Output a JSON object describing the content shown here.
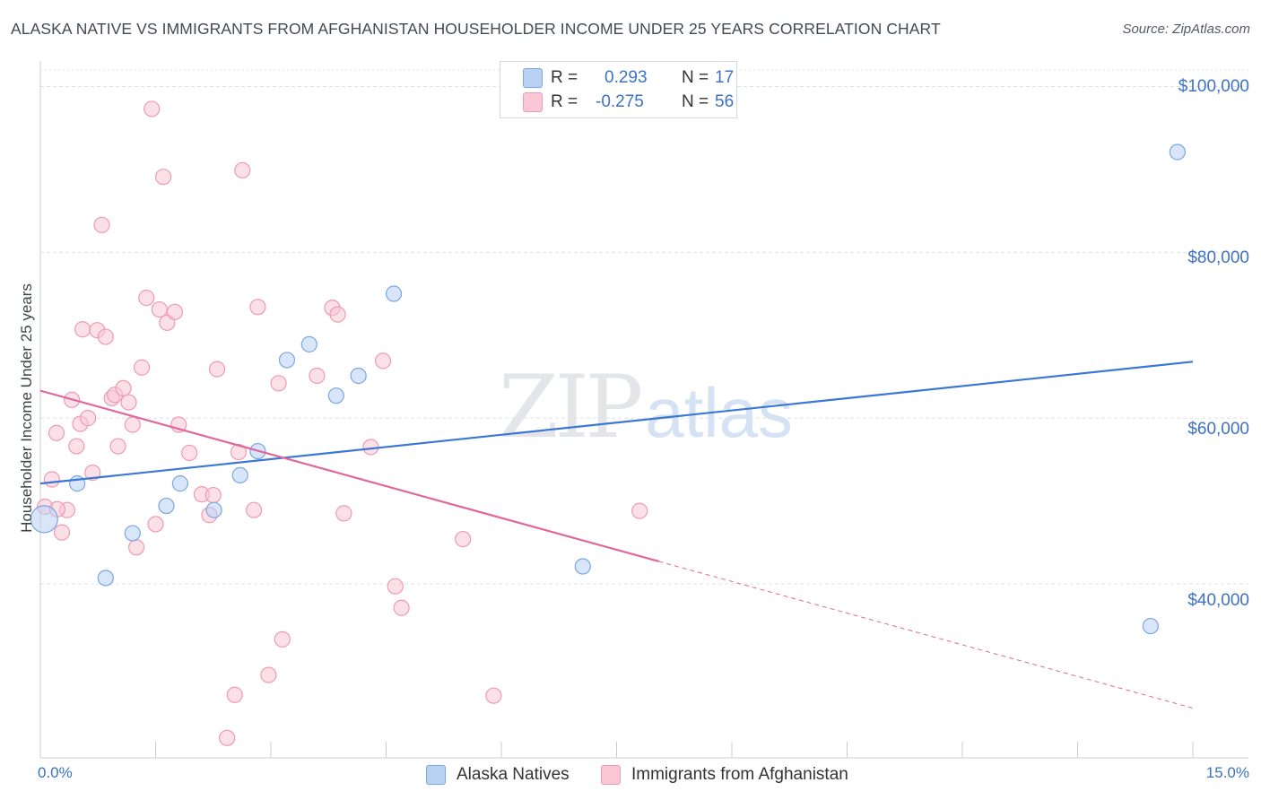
{
  "header": {
    "title": "ALASKA NATIVE VS IMMIGRANTS FROM AFGHANISTAN HOUSEHOLDER INCOME UNDER 25 YEARS CORRELATION CHART",
    "source": "Source: ZipAtlas.com"
  },
  "watermark": {
    "zip": "ZIP",
    "atlas": "atlas"
  },
  "legend": {
    "rows": [
      {
        "r_label": "R =",
        "r_value": "0.293",
        "n_label": "N =",
        "n_value": "17"
      },
      {
        "r_label": "R =",
        "r_value": "-0.275",
        "n_label": "N =",
        "n_value": "56"
      }
    ]
  },
  "colors": {
    "alaska_fill": "#b9d2f4",
    "alaska_stroke": "#7aa6e3",
    "alaska_line": "#3a78d4",
    "afghan_fill": "#f9c6d5",
    "afghan_stroke": "#ee9ab3",
    "afghan_line": "#e0679a",
    "tick_text": "#3d72c4",
    "grid": "#dde1e6"
  },
  "chart_data": {
    "type": "scatter",
    "title": "ALASKA NATIVE VS IMMIGRANTS FROM AFGHANISTAN HOUSEHOLDER INCOME UNDER 25 YEARS CORRELATION CHART",
    "xlabel": "",
    "ylabel": "Householder Income Under 25 years",
    "xlim": [
      0,
      15
    ],
    "ylim": [
      19000,
      102000
    ],
    "x_tick_labels": [
      "0.0%",
      "15.0%"
    ],
    "y_ticks": [
      40000,
      60000,
      80000,
      100000
    ],
    "y_tick_labels": [
      "$40,000",
      "$60,000",
      "$80,000",
      "$100,000"
    ],
    "grid": true,
    "legend_position": "top-center",
    "series": [
      {
        "name": "Alaska Natives",
        "r": 0.293,
        "n": 17,
        "points": [
          {
            "x": 0.05,
            "y": 47800
          },
          {
            "x": 0.48,
            "y": 52100
          },
          {
            "x": 0.85,
            "y": 40700
          },
          {
            "x": 1.2,
            "y": 46100
          },
          {
            "x": 1.64,
            "y": 49400
          },
          {
            "x": 1.82,
            "y": 52100
          },
          {
            "x": 2.26,
            "y": 48900
          },
          {
            "x": 2.6,
            "y": 53100
          },
          {
            "x": 2.83,
            "y": 56000
          },
          {
            "x": 3.21,
            "y": 67000
          },
          {
            "x": 3.5,
            "y": 68900
          },
          {
            "x": 3.85,
            "y": 62700
          },
          {
            "x": 4.14,
            "y": 65100
          },
          {
            "x": 4.6,
            "y": 75000
          },
          {
            "x": 7.06,
            "y": 42100
          },
          {
            "x": 14.45,
            "y": 34900
          },
          {
            "x": 14.8,
            "y": 92100
          }
        ],
        "trend": {
          "x0": 0.0,
          "y0": 52100,
          "x1": 15.0,
          "y1": 66800
        }
      },
      {
        "name": "Immigrants from Afghanistan",
        "r": -0.275,
        "n": 56,
        "points": [
          {
            "x": 0.06,
            "y": 49300
          },
          {
            "x": 0.15,
            "y": 52600
          },
          {
            "x": 0.21,
            "y": 58200
          },
          {
            "x": 0.28,
            "y": 46200
          },
          {
            "x": 0.35,
            "y": 48900
          },
          {
            "x": 0.41,
            "y": 62200
          },
          {
            "x": 0.47,
            "y": 56600
          },
          {
            "x": 0.52,
            "y": 59300
          },
          {
            "x": 0.55,
            "y": 70700
          },
          {
            "x": 0.62,
            "y": 60000
          },
          {
            "x": 0.68,
            "y": 53400
          },
          {
            "x": 0.74,
            "y": 70600
          },
          {
            "x": 0.8,
            "y": 83300
          },
          {
            "x": 0.85,
            "y": 69800
          },
          {
            "x": 0.93,
            "y": 62400
          },
          {
            "x": 0.97,
            "y": 62800
          },
          {
            "x": 1.01,
            "y": 56600
          },
          {
            "x": 1.08,
            "y": 63600
          },
          {
            "x": 1.15,
            "y": 61900
          },
          {
            "x": 1.2,
            "y": 59200
          },
          {
            "x": 1.25,
            "y": 44400
          },
          {
            "x": 1.32,
            "y": 66100
          },
          {
            "x": 1.38,
            "y": 74500
          },
          {
            "x": 1.45,
            "y": 97300
          },
          {
            "x": 1.5,
            "y": 47200
          },
          {
            "x": 1.55,
            "y": 73100
          },
          {
            "x": 1.6,
            "y": 89100
          },
          {
            "x": 1.65,
            "y": 71500
          },
          {
            "x": 1.75,
            "y": 72800
          },
          {
            "x": 1.8,
            "y": 59200
          },
          {
            "x": 1.94,
            "y": 55800
          },
          {
            "x": 2.1,
            "y": 50800
          },
          {
            "x": 2.2,
            "y": 48300
          },
          {
            "x": 2.25,
            "y": 50700
          },
          {
            "x": 2.3,
            "y": 65900
          },
          {
            "x": 2.43,
            "y": 21400
          },
          {
            "x": 2.53,
            "y": 26600
          },
          {
            "x": 2.58,
            "y": 55900
          },
          {
            "x": 2.63,
            "y": 89900
          },
          {
            "x": 2.78,
            "y": 48900
          },
          {
            "x": 2.83,
            "y": 73400
          },
          {
            "x": 2.97,
            "y": 29000
          },
          {
            "x": 3.1,
            "y": 64200
          },
          {
            "x": 3.15,
            "y": 33300
          },
          {
            "x": 3.6,
            "y": 65100
          },
          {
            "x": 3.8,
            "y": 73300
          },
          {
            "x": 3.87,
            "y": 72500
          },
          {
            "x": 3.95,
            "y": 48500
          },
          {
            "x": 4.3,
            "y": 56500
          },
          {
            "x": 4.46,
            "y": 66900
          },
          {
            "x": 4.62,
            "y": 39700
          },
          {
            "x": 4.7,
            "y": 37100
          },
          {
            "x": 5.5,
            "y": 45400
          },
          {
            "x": 5.9,
            "y": 26500
          },
          {
            "x": 7.8,
            "y": 48800
          },
          {
            "x": 0.22,
            "y": 49000
          }
        ],
        "trend": {
          "x0": 0.0,
          "y0": 63300,
          "x1": 8.05,
          "y1": 42700,
          "dashed_to_x": 15.0,
          "dashed_to_y": 25000
        }
      }
    ]
  },
  "bottom_legend": {
    "items": [
      {
        "label": "Alaska Natives"
      },
      {
        "label": "Immigrants from Afghanistan"
      }
    ]
  }
}
